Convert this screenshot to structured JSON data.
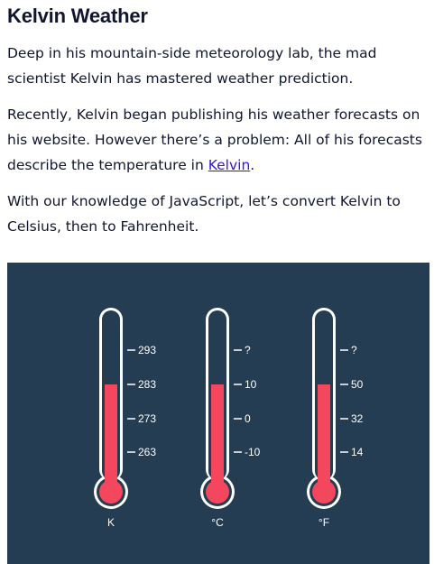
{
  "title": "Kelvin Weather",
  "paragraph1": "Deep in his mountain-side meteorology lab, the mad scientist Kelvin has mastered weather prediction.",
  "paragraph2": {
    "before": "Recently, Kelvin began publishing his weather forecasts on his website. However there’s a problem: All of his forecasts describe the temperature in ",
    "link": "Kelvin",
    "after": "."
  },
  "paragraph3": "With our knowledge of JavaScript, let’s convert Kelvin to Celsius, then to Fahrenheit.",
  "figure": {
    "background": "#243d52",
    "mercury_color": "#f4475e",
    "thermometers": [
      {
        "unit": "K",
        "ticks": [
          "293",
          "283",
          "273",
          "263"
        ]
      },
      {
        "unit": "°C",
        "ticks": [
          "?",
          "10",
          "0",
          "-10"
        ]
      },
      {
        "unit": "°F",
        "ticks": [
          "?",
          "50",
          "32",
          "14"
        ]
      }
    ],
    "mercury_level_tick_index": 1
  }
}
